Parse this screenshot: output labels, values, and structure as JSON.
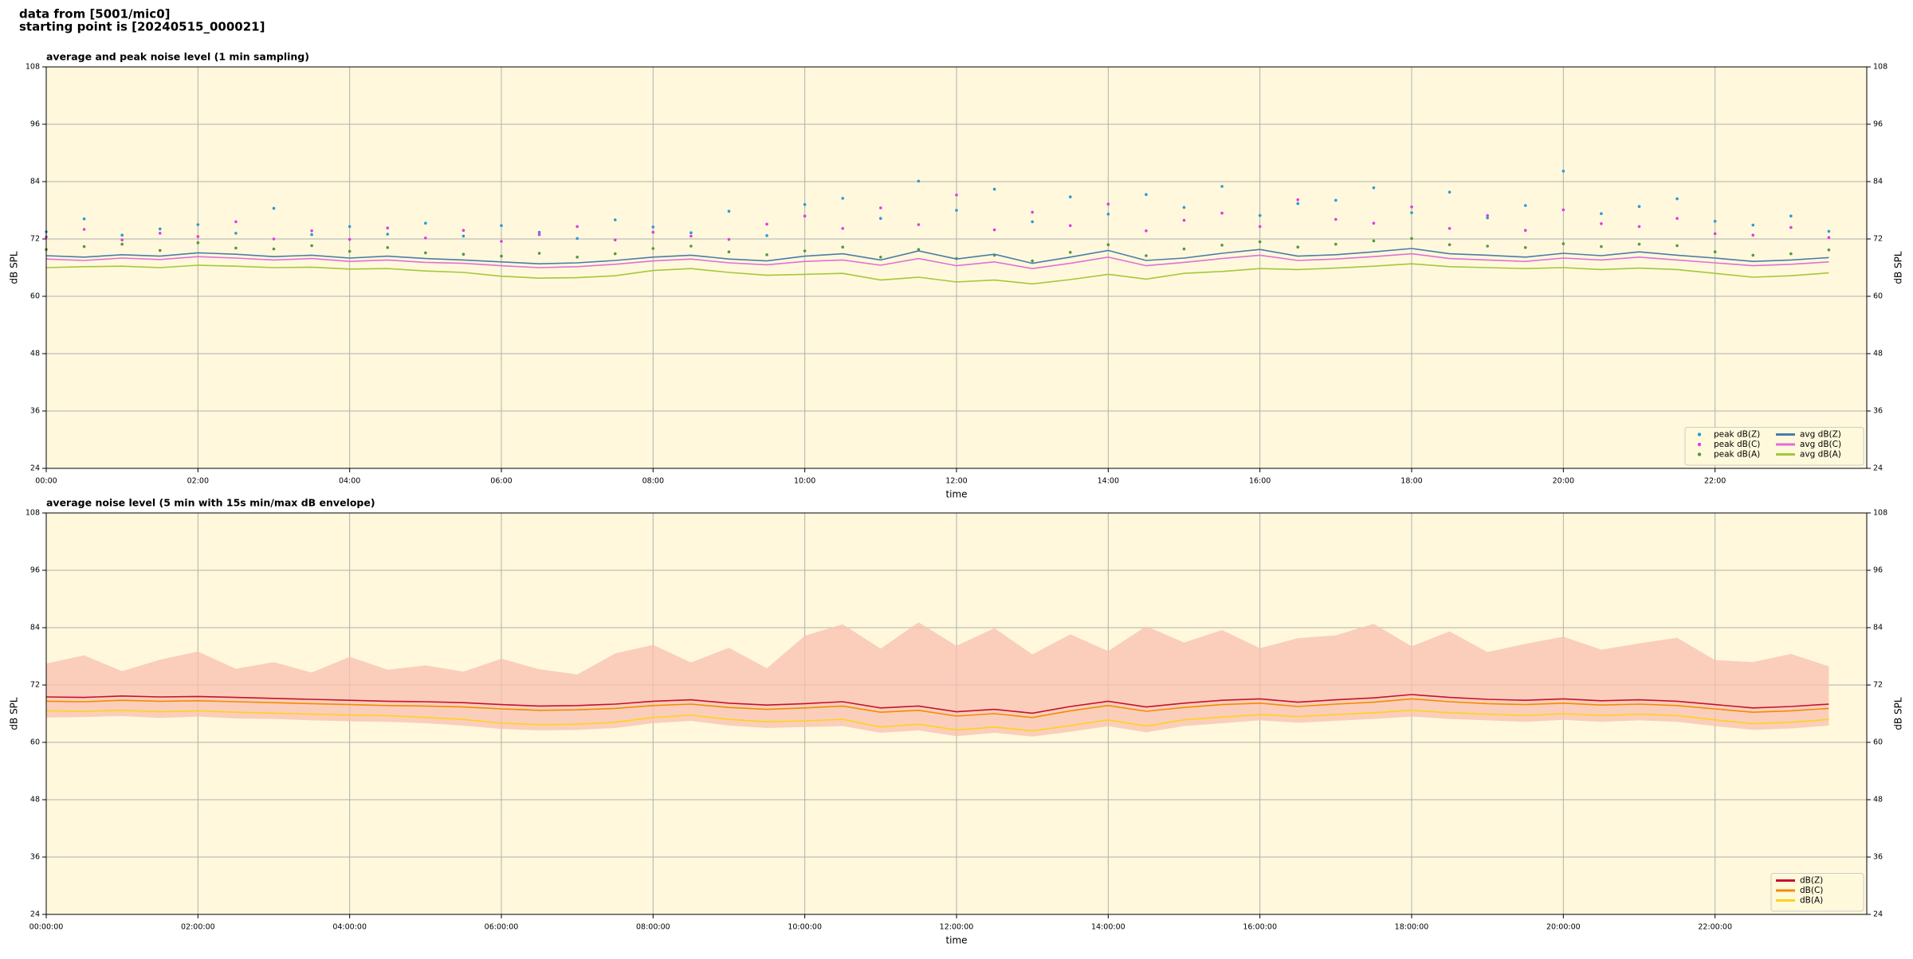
{
  "page_title": [
    "data from [5001/mic0]",
    "starting point is [20240515_000021]"
  ],
  "chart_data": [
    {
      "type": "line",
      "title": "average and peak noise level (1 min sampling)",
      "xlabel": "time",
      "ylabel": "dB SPL",
      "background": "#fff8dc",
      "grid": true,
      "legend": "lower right",
      "legend_columns": 2,
      "xlim": [
        0,
        24
      ],
      "ylim": [
        24,
        108
      ],
      "xticks": [
        {
          "value": 0,
          "label": "00:00"
        },
        {
          "value": 2,
          "label": "02:00"
        },
        {
          "value": 4,
          "label": "04:00"
        },
        {
          "value": 6,
          "label": "06:00"
        },
        {
          "value": 8,
          "label": "08:00"
        },
        {
          "value": 10,
          "label": "10:00"
        },
        {
          "value": 12,
          "label": "12:00"
        },
        {
          "value": 14,
          "label": "14:00"
        },
        {
          "value": 16,
          "label": "16:00"
        },
        {
          "value": 18,
          "label": "18:00"
        },
        {
          "value": 20,
          "label": "20:00"
        },
        {
          "value": 22,
          "label": "22:00"
        }
      ],
      "yticks": [
        24,
        36,
        48,
        60,
        72,
        84,
        96,
        108
      ],
      "x": [
        0,
        0.5,
        1,
        1.5,
        2,
        2.5,
        3,
        3.5,
        4,
        4.5,
        5,
        5.5,
        6,
        6.5,
        7,
        7.5,
        8,
        8.5,
        9,
        9.5,
        10,
        10.5,
        11,
        11.5,
        12,
        12.5,
        13,
        13.5,
        14,
        14.5,
        15,
        15.5,
        16,
        16.5,
        17,
        17.5,
        18,
        18.5,
        19,
        19.5,
        20,
        20.5,
        21,
        21.5,
        22,
        22.5,
        23,
        23.5
      ],
      "series": [
        {
          "name": "peak dB(Z)",
          "type": "scatter",
          "color": "#2a9ad8",
          "values": [
            73.5,
            76.2,
            72.8,
            74.1,
            75.0,
            73.2,
            78.4,
            72.9,
            74.6,
            73.0,
            75.3,
            72.6,
            74.8,
            73.4,
            72.1,
            76.0,
            74.5,
            73.3,
            77.8,
            72.7,
            79.2,
            80.5,
            76.3,
            84.1,
            78.0,
            82.4,
            75.6,
            80.8,
            77.2,
            81.3,
            78.6,
            83.0,
            76.9,
            79.4,
            80.1,
            82.7,
            77.5,
            81.8,
            76.4,
            79.0,
            86.2,
            77.3,
            78.8,
            80.4,
            75.7,
            74.9,
            76.8,
            73.6
          ]
        },
        {
          "name": "peak dB(C)",
          "type": "scatter",
          "color": "#e03ce0",
          "values": [
            72.4,
            74.0,
            71.8,
            73.2,
            72.5,
            75.6,
            72.0,
            73.7,
            71.9,
            74.3,
            72.2,
            73.8,
            71.5,
            72.9,
            74.6,
            71.8,
            73.4,
            72.6,
            71.9,
            75.1,
            76.8,
            74.2,
            78.5,
            75.0,
            81.2,
            73.9,
            77.6,
            74.8,
            79.3,
            73.7,
            75.9,
            77.4,
            74.6,
            80.2,
            76.1,
            75.3,
            78.7,
            74.2,
            76.9,
            73.8,
            78.1,
            75.2,
            74.6,
            76.3,
            73.1,
            72.8,
            74.4,
            72.3
          ]
        },
        {
          "name": "peak dB(A)",
          "type": "scatter",
          "color": "#4f9a3c",
          "values": [
            69.8,
            70.4,
            70.9,
            69.6,
            71.2,
            70.1,
            69.9,
            70.6,
            69.4,
            70.2,
            69.1,
            68.8,
            68.4,
            69.0,
            68.2,
            68.9,
            70.0,
            70.5,
            69.3,
            68.7,
            69.5,
            70.3,
            68.2,
            69.8,
            67.9,
            68.6,
            67.4,
            69.2,
            70.8,
            68.5,
            69.9,
            70.7,
            71.4,
            70.3,
            70.9,
            71.6,
            72.1,
            70.8,
            70.5,
            70.2,
            71.0,
            70.4,
            70.9,
            70.6,
            69.3,
            68.6,
            68.9,
            69.7
          ]
        },
        {
          "name": "avg dB(Z)",
          "type": "line",
          "color": "#4a7ca8",
          "values": [
            68.5,
            68.2,
            68.7,
            68.4,
            69.1,
            68.8,
            68.3,
            68.6,
            68.0,
            68.4,
            67.9,
            67.6,
            67.2,
            66.8,
            67.0,
            67.5,
            68.2,
            68.6,
            67.8,
            67.4,
            68.4,
            68.9,
            67.6,
            69.5,
            67.8,
            68.8,
            66.9,
            68.2,
            69.6,
            67.5,
            68.0,
            69.0,
            69.8,
            68.4,
            68.7,
            69.3,
            70.0,
            68.9,
            68.6,
            68.2,
            69.0,
            68.5,
            69.3,
            68.6,
            68.0,
            67.3,
            67.6,
            68.1
          ]
        },
        {
          "name": "avg dB(C)",
          "type": "line",
          "color": "#e070d6",
          "values": [
            67.8,
            67.5,
            68.0,
            67.7,
            68.3,
            68.0,
            67.6,
            67.9,
            67.3,
            67.6,
            67.1,
            66.9,
            66.4,
            66.0,
            66.2,
            66.7,
            67.4,
            67.8,
            67.0,
            66.6,
            67.3,
            67.6,
            66.5,
            67.9,
            66.4,
            67.2,
            65.8,
            66.9,
            68.2,
            66.4,
            67.1,
            67.9,
            68.6,
            67.5,
            67.8,
            68.3,
            68.9,
            67.9,
            67.6,
            67.3,
            68.0,
            67.6,
            68.2,
            67.6,
            67.0,
            66.4,
            66.7,
            67.2
          ]
        },
        {
          "name": "avg dB(A)",
          "type": "line",
          "color": "#a4c83a",
          "values": [
            66.0,
            66.2,
            66.3,
            66.0,
            66.5,
            66.3,
            66.0,
            66.1,
            65.7,
            65.8,
            65.3,
            65.0,
            64.2,
            63.8,
            63.9,
            64.3,
            65.4,
            65.8,
            65.0,
            64.4,
            64.6,
            64.8,
            63.4,
            64.0,
            63.0,
            63.4,
            62.6,
            63.5,
            64.6,
            63.6,
            64.8,
            65.2,
            65.8,
            65.6,
            65.9,
            66.3,
            66.8,
            66.2,
            66.0,
            65.8,
            66.0,
            65.6,
            65.9,
            65.6,
            64.8,
            64.0,
            64.3,
            64.9
          ]
        }
      ]
    },
    {
      "type": "line",
      "title": "average noise level (5 min with 15s min/max dB envelope)",
      "xlabel": "time",
      "ylabel": "dB SPL",
      "background": "#fff8dc",
      "grid": true,
      "legend": "lower right",
      "legend_columns": 1,
      "xlim": [
        0,
        24
      ],
      "ylim": [
        24,
        108
      ],
      "xticks": [
        {
          "value": 0,
          "label": "00:00:00"
        },
        {
          "value": 2,
          "label": "02:00:00"
        },
        {
          "value": 4,
          "label": "04:00:00"
        },
        {
          "value": 6,
          "label": "06:00:00"
        },
        {
          "value": 8,
          "label": "08:00:00"
        },
        {
          "value": 10,
          "label": "10:00:00"
        },
        {
          "value": 12,
          "label": "12:00:00"
        },
        {
          "value": 14,
          "label": "14:00:00"
        },
        {
          "value": 16,
          "label": "16:00:00"
        },
        {
          "value": 18,
          "label": "18:00:00"
        },
        {
          "value": 20,
          "label": "20:00:00"
        },
        {
          "value": 22,
          "label": "22:00:00"
        }
      ],
      "yticks": [
        24,
        36,
        48,
        60,
        72,
        84,
        96,
        108
      ],
      "x": [
        0,
        0.5,
        1,
        1.5,
        2,
        2.5,
        3,
        3.5,
        4,
        4.5,
        5,
        5.5,
        6,
        6.5,
        7,
        7.5,
        8,
        8.5,
        9,
        9.5,
        10,
        10.5,
        11,
        11.5,
        12,
        12.5,
        13,
        13.5,
        14,
        14.5,
        15,
        15.5,
        16,
        16.5,
        17,
        17.5,
        18,
        18.5,
        19,
        19.5,
        20,
        20.5,
        21,
        21.5,
        22,
        22.5,
        23,
        23.5
      ],
      "envelope": {
        "color": "#f8c0b0",
        "lower": [
          65.2,
          65.3,
          65.5,
          65.1,
          65.4,
          65.0,
          64.9,
          64.6,
          64.4,
          64.3,
          64.0,
          63.5,
          62.8,
          62.5,
          62.6,
          63.0,
          64.0,
          64.5,
          63.5,
          63.0,
          63.2,
          63.4,
          62.0,
          62.5,
          61.3,
          62.0,
          61.2,
          62.2,
          63.4,
          62.1,
          63.4,
          64.0,
          64.6,
          64.1,
          64.5,
          64.9,
          65.4,
          64.9,
          64.6,
          64.3,
          64.7,
          64.3,
          64.6,
          64.3,
          63.4,
          62.6,
          62.9,
          63.5
        ],
        "upper": [
          76.5,
          78.2,
          74.9,
          77.3,
          79.0,
          75.4,
          76.8,
          74.6,
          77.9,
          75.2,
          76.1,
          74.8,
          77.5,
          75.3,
          74.2,
          78.6,
          80.4,
          76.7,
          79.8,
          75.5,
          82.3,
          84.7,
          79.6,
          85.1,
          80.2,
          83.9,
          78.4,
          82.6,
          79.1,
          84.3,
          80.9,
          83.5,
          79.7,
          81.8,
          82.4,
          84.8,
          80.1,
          83.2,
          78.9,
          80.6,
          82.1,
          79.4,
          80.7,
          81.9,
          77.2,
          76.8,
          78.5,
          75.9
        ]
      },
      "series": [
        {
          "name": "dB(Z)",
          "type": "line",
          "color": "#c8102e",
          "values": [
            69.5,
            69.4,
            69.7,
            69.5,
            69.6,
            69.4,
            69.2,
            69.0,
            68.8,
            68.6,
            68.5,
            68.3,
            67.9,
            67.6,
            67.7,
            68.0,
            68.6,
            68.9,
            68.2,
            67.8,
            68.1,
            68.5,
            67.2,
            67.6,
            66.4,
            66.9,
            66.1,
            67.5,
            68.6,
            67.4,
            68.2,
            68.8,
            69.1,
            68.4,
            68.9,
            69.3,
            70.0,
            69.4,
            69.0,
            68.8,
            69.1,
            68.7,
            68.9,
            68.6,
            67.9,
            67.2,
            67.5,
            68.0
          ]
        },
        {
          "name": "dB(C)",
          "type": "line",
          "color": "#f28c00",
          "values": [
            68.6,
            68.5,
            68.8,
            68.6,
            68.7,
            68.5,
            68.3,
            68.1,
            67.9,
            67.7,
            67.6,
            67.4,
            67.0,
            66.7,
            66.8,
            67.1,
            67.7,
            68.0,
            67.3,
            66.9,
            67.2,
            67.6,
            66.3,
            66.7,
            65.5,
            66.0,
            65.2,
            66.6,
            67.7,
            66.5,
            67.3,
            67.9,
            68.2,
            67.5,
            68.0,
            68.4,
            69.1,
            68.5,
            68.1,
            67.9,
            68.2,
            67.8,
            68.0,
            67.7,
            67.0,
            66.3,
            66.6,
            67.1
          ]
        },
        {
          "name": "dB(A)",
          "type": "line",
          "color": "#ffd21a",
          "values": [
            66.6,
            66.5,
            66.7,
            66.4,
            66.6,
            66.3,
            66.1,
            65.9,
            65.7,
            65.6,
            65.2,
            64.8,
            64.0,
            63.7,
            63.8,
            64.2,
            65.2,
            65.7,
            64.8,
            64.3,
            64.5,
            64.8,
            63.2,
            63.8,
            62.6,
            63.2,
            62.4,
            63.5,
            64.7,
            63.4,
            64.7,
            65.3,
            65.8,
            65.4,
            65.8,
            66.2,
            66.7,
            66.2,
            65.9,
            65.6,
            66.0,
            65.6,
            65.9,
            65.6,
            64.7,
            63.9,
            64.2,
            64.8
          ]
        }
      ]
    }
  ]
}
